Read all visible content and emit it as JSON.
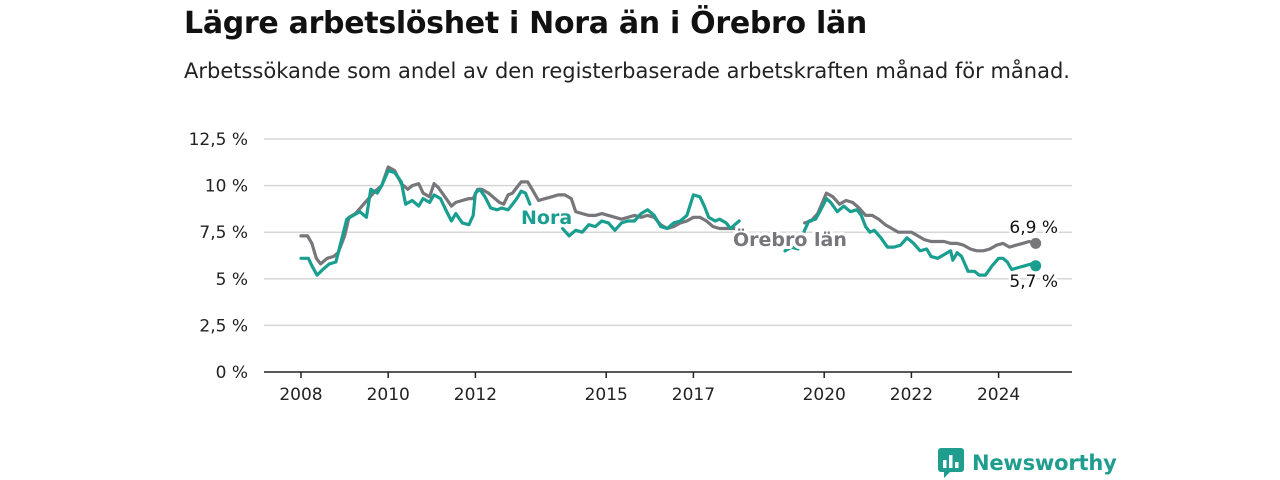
{
  "colors": {
    "nora": "#1a9e90",
    "orebro": "#77767b",
    "grid": "#d6d6d6",
    "axis": "#222222",
    "brand": "#1f9e8f"
  },
  "chart_data": {
    "type": "line",
    "title": "Lägre arbetslöshet i Nora än i Örebro län",
    "subtitle": "Arbetssökande som andel av den registerbaserade arbetskraften månad för månad.",
    "xlabel": "",
    "ylabel": "",
    "ylim": [
      0,
      12.5
    ],
    "y_ticks": [
      0,
      2.5,
      5,
      7.5,
      10,
      12.5
    ],
    "y_tick_labels": [
      "0 %",
      "2,5 %",
      "5 %",
      "7,5 %",
      "10 %",
      "12,5 %"
    ],
    "x_ticks": [
      2008,
      2010,
      2012,
      2015,
      2017,
      2020,
      2022,
      2024
    ],
    "x_tick_labels": [
      "2008",
      "2010",
      "2012",
      "2015",
      "2017",
      "2020",
      "2022",
      "2024"
    ],
    "x_unit": "year",
    "grid": true,
    "legend": "inline labels on lines",
    "series": [
      {
        "name": "Nora",
        "color": "#1a9e90",
        "points": [
          [
            2008.0,
            6.1
          ],
          [
            2008.17,
            6.1
          ],
          [
            2008.25,
            5.7
          ],
          [
            2008.37,
            5.2
          ],
          [
            2008.5,
            5.5
          ],
          [
            2008.65,
            5.8
          ],
          [
            2008.8,
            5.9
          ],
          [
            2008.92,
            7.0
          ],
          [
            2009.05,
            8.2
          ],
          [
            2009.2,
            8.4
          ],
          [
            2009.35,
            8.6
          ],
          [
            2009.5,
            8.3
          ],
          [
            2009.6,
            9.8
          ],
          [
            2009.75,
            9.6
          ],
          [
            2009.85,
            10.0
          ],
          [
            2010.0,
            10.8
          ],
          [
            2010.15,
            10.7
          ],
          [
            2010.3,
            10.2
          ],
          [
            2010.4,
            9.0
          ],
          [
            2010.55,
            9.2
          ],
          [
            2010.7,
            8.9
          ],
          [
            2010.8,
            9.3
          ],
          [
            2010.95,
            9.1
          ],
          [
            2011.05,
            9.5
          ],
          [
            2011.2,
            9.3
          ],
          [
            2011.3,
            8.8
          ],
          [
            2011.45,
            8.1
          ],
          [
            2011.55,
            8.5
          ],
          [
            2011.7,
            8.0
          ],
          [
            2011.85,
            7.9
          ],
          [
            2011.95,
            8.4
          ],
          [
            2012.0,
            9.6
          ],
          [
            2012.1,
            9.8
          ],
          [
            2012.22,
            9.4
          ],
          [
            2012.35,
            8.8
          ],
          [
            2012.5,
            8.7
          ],
          [
            2012.6,
            8.8
          ],
          [
            2012.75,
            8.7
          ],
          [
            2012.85,
            9.0
          ],
          [
            2012.95,
            9.3
          ],
          [
            2013.05,
            9.7
          ],
          [
            2013.15,
            9.6
          ],
          [
            2013.25,
            9.0
          ]
        ],
        "points_2": [
          [
            2014.0,
            7.7
          ],
          [
            2014.15,
            7.3
          ],
          [
            2014.3,
            7.6
          ],
          [
            2014.45,
            7.5
          ],
          [
            2014.6,
            7.9
          ],
          [
            2014.75,
            7.8
          ],
          [
            2014.9,
            8.1
          ],
          [
            2015.05,
            8.0
          ],
          [
            2015.2,
            7.6
          ],
          [
            2015.35,
            8.0
          ],
          [
            2015.5,
            8.1
          ],
          [
            2015.65,
            8.1
          ],
          [
            2015.8,
            8.5
          ],
          [
            2015.95,
            8.7
          ],
          [
            2016.1,
            8.4
          ],
          [
            2016.25,
            7.8
          ],
          [
            2016.4,
            7.7
          ],
          [
            2016.55,
            8.0
          ],
          [
            2016.7,
            8.1
          ],
          [
            2016.85,
            8.4
          ],
          [
            2017.0,
            9.5
          ],
          [
            2017.15,
            9.4
          ],
          [
            2017.25,
            8.9
          ],
          [
            2017.35,
            8.3
          ],
          [
            2017.5,
            8.1
          ],
          [
            2017.6,
            8.2
          ],
          [
            2017.75,
            8.0
          ],
          [
            2017.85,
            7.7
          ],
          [
            2017.95,
            7.9
          ],
          [
            2018.05,
            8.1
          ]
        ],
        "points_3": [
          [
            2019.1,
            6.5
          ],
          [
            2019.25,
            6.7
          ],
          [
            2019.4,
            6.6
          ],
          [
            2019.55,
            7.6
          ],
          [
            2019.65,
            8.1
          ],
          [
            2019.8,
            8.2
          ],
          [
            2019.9,
            8.6
          ],
          [
            2020.05,
            9.3
          ],
          [
            2020.15,
            9.1
          ],
          [
            2020.3,
            8.6
          ],
          [
            2020.45,
            8.9
          ],
          [
            2020.6,
            8.6
          ],
          [
            2020.75,
            8.7
          ],
          [
            2020.85,
            8.4
          ],
          [
            2020.95,
            7.8
          ],
          [
            2021.05,
            7.5
          ],
          [
            2021.15,
            7.6
          ],
          [
            2021.3,
            7.2
          ],
          [
            2021.45,
            6.7
          ],
          [
            2021.6,
            6.7
          ],
          [
            2021.75,
            6.8
          ],
          [
            2021.9,
            7.2
          ],
          [
            2022.05,
            6.9
          ],
          [
            2022.2,
            6.5
          ],
          [
            2022.35,
            6.6
          ],
          [
            2022.45,
            6.2
          ],
          [
            2022.6,
            6.1
          ],
          [
            2022.75,
            6.3
          ],
          [
            2022.9,
            6.5
          ],
          [
            2022.95,
            6.0
          ],
          [
            2023.05,
            6.4
          ],
          [
            2023.15,
            6.2
          ],
          [
            2023.3,
            5.4
          ],
          [
            2023.45,
            5.4
          ],
          [
            2023.55,
            5.2
          ],
          [
            2023.7,
            5.2
          ],
          [
            2023.85,
            5.7
          ],
          [
            2024.0,
            6.1
          ],
          [
            2024.1,
            6.1
          ],
          [
            2024.2,
            5.9
          ],
          [
            2024.3,
            5.5
          ],
          [
            2024.45,
            5.6
          ],
          [
            2024.6,
            5.7
          ],
          [
            2024.75,
            5.8
          ],
          [
            2024.85,
            5.7
          ]
        ],
        "end_value": 5.7,
        "end_label": "5,7 %"
      },
      {
        "name": "Örebro län",
        "color": "#77767b",
        "points": [
          [
            2008.0,
            7.3
          ],
          [
            2008.15,
            7.3
          ],
          [
            2008.25,
            6.9
          ],
          [
            2008.35,
            6.1
          ],
          [
            2008.45,
            5.8
          ],
          [
            2008.6,
            6.1
          ],
          [
            2008.75,
            6.2
          ],
          [
            2008.85,
            6.4
          ],
          [
            2009.0,
            7.3
          ],
          [
            2009.1,
            8.3
          ],
          [
            2009.25,
            8.5
          ],
          [
            2009.4,
            8.9
          ],
          [
            2009.55,
            9.3
          ],
          [
            2009.7,
            9.7
          ],
          [
            2009.85,
            10.0
          ],
          [
            2010.0,
            11.0
          ],
          [
            2010.15,
            10.8
          ],
          [
            2010.3,
            10.1
          ],
          [
            2010.45,
            9.8
          ],
          [
            2010.55,
            10.0
          ],
          [
            2010.7,
            10.1
          ],
          [
            2010.8,
            9.6
          ],
          [
            2010.95,
            9.4
          ],
          [
            2011.05,
            10.1
          ],
          [
            2011.15,
            9.9
          ],
          [
            2011.3,
            9.4
          ],
          [
            2011.45,
            8.9
          ],
          [
            2011.55,
            9.1
          ],
          [
            2011.7,
            9.2
          ],
          [
            2011.85,
            9.3
          ],
          [
            2011.95,
            9.3
          ],
          [
            2012.05,
            9.8
          ],
          [
            2012.15,
            9.8
          ],
          [
            2012.3,
            9.6
          ],
          [
            2012.4,
            9.4
          ],
          [
            2012.55,
            9.1
          ],
          [
            2012.65,
            9.0
          ],
          [
            2012.75,
            9.5
          ],
          [
            2012.85,
            9.6
          ],
          [
            2012.95,
            9.9
          ],
          [
            2013.05,
            10.2
          ],
          [
            2013.2,
            10.2
          ],
          [
            2013.3,
            9.8
          ],
          [
            2013.45,
            9.2
          ],
          [
            2013.6,
            9.3
          ],
          [
            2013.75,
            9.4
          ],
          [
            2013.9,
            9.5
          ],
          [
            2014.05,
            9.5
          ],
          [
            2014.2,
            9.3
          ],
          [
            2014.3,
            8.6
          ],
          [
            2014.45,
            8.5
          ],
          [
            2014.6,
            8.4
          ],
          [
            2014.75,
            8.4
          ],
          [
            2014.9,
            8.5
          ],
          [
            2015.05,
            8.4
          ],
          [
            2015.2,
            8.3
          ],
          [
            2015.35,
            8.2
          ],
          [
            2015.5,
            8.3
          ],
          [
            2015.65,
            8.4
          ],
          [
            2015.8,
            8.3
          ],
          [
            2015.95,
            8.4
          ],
          [
            2016.1,
            8.3
          ],
          [
            2016.25,
            7.9
          ],
          [
            2016.4,
            7.7
          ],
          [
            2016.55,
            7.8
          ],
          [
            2016.7,
            8.0
          ],
          [
            2016.85,
            8.1
          ],
          [
            2017.0,
            8.3
          ],
          [
            2017.15,
            8.3
          ],
          [
            2017.3,
            8.1
          ],
          [
            2017.45,
            7.8
          ],
          [
            2017.6,
            7.7
          ],
          [
            2017.75,
            7.7
          ],
          [
            2017.95,
            7.7
          ],
          [
            2018.1,
            7.6
          ]
        ],
        "points_2": [
          [
            2019.55,
            8.0
          ],
          [
            2019.7,
            8.1
          ],
          [
            2019.85,
            8.5
          ],
          [
            2020.05,
            9.6
          ],
          [
            2020.2,
            9.4
          ],
          [
            2020.35,
            9.0
          ],
          [
            2020.5,
            9.2
          ],
          [
            2020.65,
            9.1
          ],
          [
            2020.8,
            8.8
          ],
          [
            2020.95,
            8.4
          ],
          [
            2021.1,
            8.4
          ],
          [
            2021.25,
            8.2
          ],
          [
            2021.4,
            7.9
          ],
          [
            2021.55,
            7.7
          ],
          [
            2021.7,
            7.5
          ],
          [
            2021.85,
            7.5
          ],
          [
            2022.0,
            7.5
          ],
          [
            2022.15,
            7.3
          ],
          [
            2022.3,
            7.1
          ],
          [
            2022.45,
            7.0
          ],
          [
            2022.6,
            7.0
          ],
          [
            2022.75,
            7.0
          ],
          [
            2022.9,
            6.9
          ],
          [
            2023.05,
            6.9
          ],
          [
            2023.2,
            6.8
          ],
          [
            2023.35,
            6.6
          ],
          [
            2023.5,
            6.5
          ],
          [
            2023.65,
            6.5
          ],
          [
            2023.8,
            6.6
          ],
          [
            2023.95,
            6.8
          ],
          [
            2024.1,
            6.9
          ],
          [
            2024.25,
            6.7
          ],
          [
            2024.4,
            6.8
          ],
          [
            2024.55,
            6.9
          ],
          [
            2024.7,
            7.0
          ],
          [
            2024.85,
            6.9
          ]
        ],
        "end_value": 6.9,
        "end_label": "6,9 %"
      }
    ]
  },
  "brand": {
    "name": "Newsworthy"
  }
}
